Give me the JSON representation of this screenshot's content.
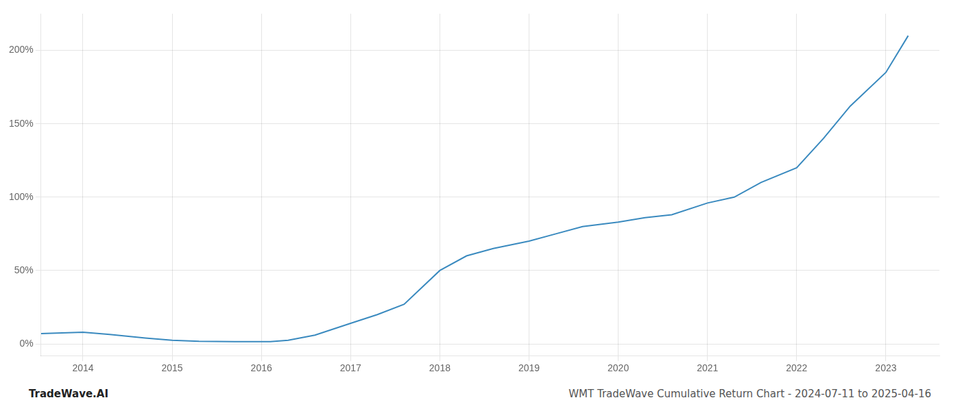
{
  "chart_data": {
    "type": "line",
    "title": "WMT TradeWave Cumulative Return Chart - 2024-07-11 to 2025-04-16",
    "annotations": [
      "TradeWave.AI"
    ],
    "color": "#3a8abf",
    "x": [
      2013.53,
      2014.0,
      2014.3,
      2014.7,
      2015.0,
      2015.3,
      2015.7,
      2016.0,
      2016.1,
      2016.3,
      2016.6,
      2017.0,
      2017.3,
      2017.6,
      2018.0,
      2018.3,
      2018.6,
      2019.0,
      2019.3,
      2019.6,
      2020.0,
      2020.3,
      2020.6,
      2021.0,
      2021.3,
      2021.6,
      2022.0,
      2022.3,
      2022.6,
      2023.0,
      2023.25
    ],
    "values": [
      7.0,
      8.0,
      6.5,
      4.0,
      2.5,
      1.8,
      1.5,
      1.5,
      1.6,
      2.5,
      6.0,
      14.0,
      20.0,
      27.0,
      50.0,
      60.0,
      65.0,
      70.0,
      75.0,
      80.0,
      83.0,
      86.0,
      88.0,
      96.0,
      100.0,
      110.0,
      120.0,
      140.0,
      162.0,
      185.0,
      210.0
    ],
    "xlim": [
      2013.53,
      2023.6
    ],
    "ylim": [
      -8,
      225
    ],
    "xticks": [
      2014,
      2015,
      2016,
      2017,
      2018,
      2019,
      2020,
      2021,
      2022,
      2023
    ],
    "yticks": [
      {
        "value": 0,
        "label": "0%"
      },
      {
        "value": 50,
        "label": "50%"
      },
      {
        "value": 100,
        "label": "100%"
      },
      {
        "value": 150,
        "label": "150%"
      },
      {
        "value": 200,
        "label": "200%"
      }
    ],
    "grid": true
  }
}
